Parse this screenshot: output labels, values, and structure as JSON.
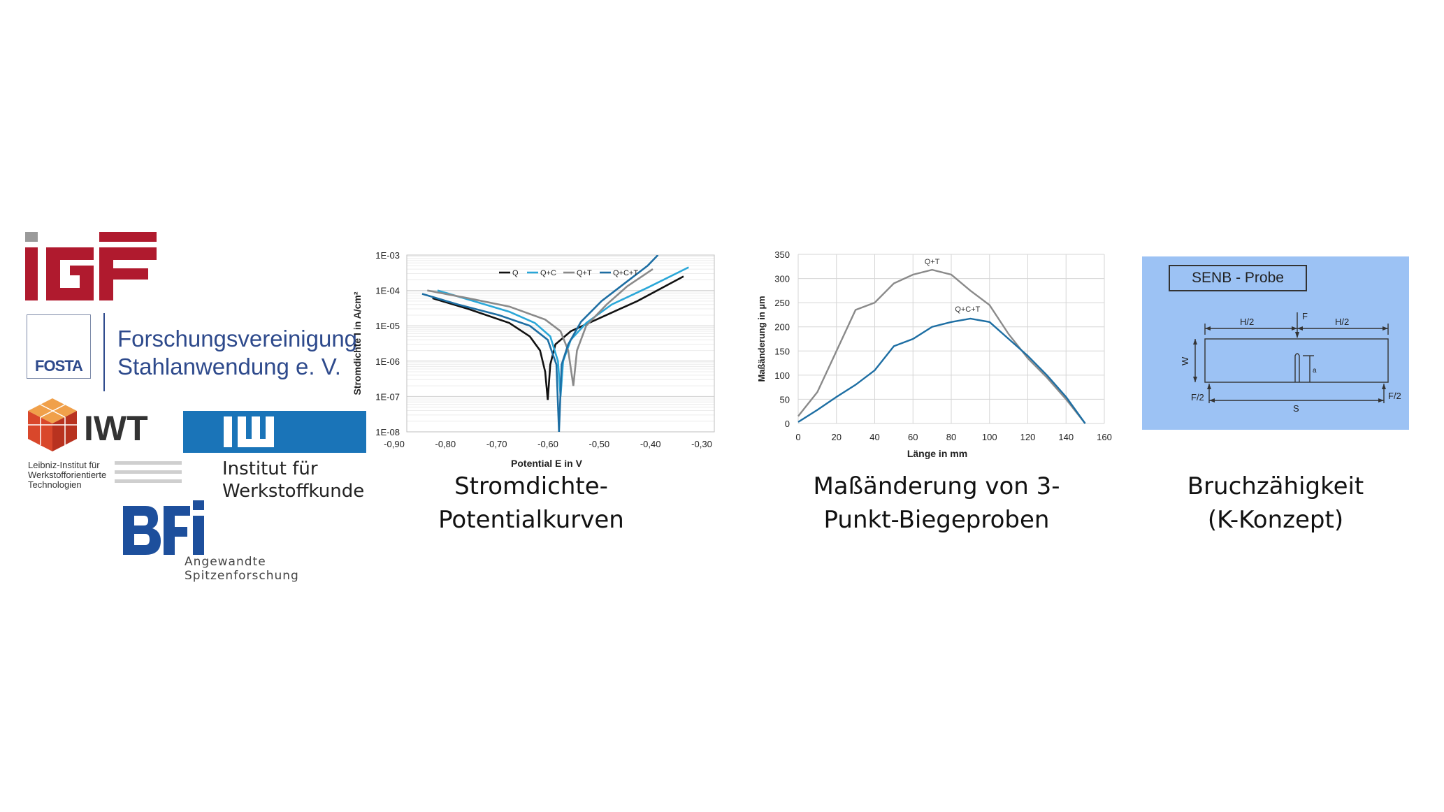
{
  "logos": {
    "igf": {
      "text": "iGF",
      "color": "#b01a2e",
      "accent": "#9a9a9a"
    },
    "fosta": {
      "abbr": "FOSTA",
      "line1": "Forschungsvereinigung",
      "line2": "Stahlanwendung e. V.",
      "color": "#2e4a8c"
    },
    "iwt": {
      "abbr": "IWT",
      "line1": "Leibniz-Institut für",
      "line2": "Werkstofforientierte",
      "line3": "Technologien",
      "color": "#d9472b"
    },
    "iw": {
      "line1": "Institut für",
      "line2": "Werkstoffkunde",
      "color": "#1a74b8"
    },
    "bfi": {
      "line1": "Angewandte",
      "line2": "Spitzenforschung",
      "color": "#1d4f9c"
    }
  },
  "captions": {
    "c1_line1": "Stromdichte-",
    "c1_line2": "Potentialkurven",
    "c2_line1": "Maßänderung von 3-",
    "c2_line2": "Punkt-Biegeproben",
    "c3_line1": "Bruchzähigkeit",
    "c3_line2": "(K-Konzept)"
  },
  "diagram": {
    "title": "SENB - Probe",
    "labels": {
      "h2_left": "H/2",
      "f": "F",
      "h2_right": "H/2",
      "w": "W",
      "a": "a",
      "f2_left": "F/2",
      "s": "S",
      "f2_right": "F/2"
    },
    "background": "#9cc2f4"
  },
  "chart_data": [
    {
      "type": "line",
      "title": "",
      "xlabel": "Potential E in V",
      "ylabel": "Stromdichte I in A/cm²",
      "xlim": [
        -0.9,
        -0.3
      ],
      "ylim": [
        1e-08,
        0.001
      ],
      "yscale": "log",
      "x_ticks": [
        "-0,90",
        "-0,80",
        "-0,70",
        "-0,60",
        "-0,50",
        "-0,40",
        "-0,30"
      ],
      "y_ticks": [
        "1E-03",
        "1E-04",
        "1E-05",
        "1E-06",
        "1E-07",
        "1E-08"
      ],
      "legend_position": "top",
      "series": [
        {
          "name": "Q",
          "color": "#111111",
          "points": [
            [
              -0.85,
              6e-05
            ],
            [
              -0.78,
              3e-05
            ],
            [
              -0.7,
              1.2e-05
            ],
            [
              -0.66,
              5e-06
            ],
            [
              -0.64,
              2e-06
            ],
            [
              -0.63,
              5e-07
            ],
            [
              -0.625,
              8e-08
            ],
            [
              -0.62,
              8e-07
            ],
            [
              -0.61,
              3e-06
            ],
            [
              -0.58,
              7e-06
            ],
            [
              -0.53,
              1.5e-05
            ],
            [
              -0.45,
              5e-05
            ],
            [
              -0.36,
              0.00025
            ]
          ]
        },
        {
          "name": "Q+C",
          "color": "#2aa7d8",
          "points": [
            [
              -0.84,
              0.0001
            ],
            [
              -0.77,
              5e-05
            ],
            [
              -0.7,
              2.5e-05
            ],
            [
              -0.65,
              1.2e-05
            ],
            [
              -0.62,
              5e-06
            ],
            [
              -0.605,
              1e-06
            ],
            [
              -0.6,
              1e-07
            ],
            [
              -0.595,
              1e-06
            ],
            [
              -0.58,
              4e-06
            ],
            [
              -0.55,
              1.2e-05
            ],
            [
              -0.5,
              4e-05
            ],
            [
              -0.43,
              0.00012
            ],
            [
              -0.35,
              0.00045
            ]
          ]
        },
        {
          "name": "Q+T",
          "color": "#8a8a8a",
          "points": [
            [
              -0.86,
              0.0001
            ],
            [
              -0.78,
              6e-05
            ],
            [
              -0.7,
              3.5e-05
            ],
            [
              -0.63,
              1.5e-05
            ],
            [
              -0.6,
              7e-06
            ],
            [
              -0.585,
              2e-06
            ],
            [
              -0.575,
              2e-07
            ],
            [
              -0.568,
              2e-06
            ],
            [
              -0.55,
              1e-05
            ],
            [
              -0.51,
              4e-05
            ],
            [
              -0.47,
              0.00013
            ],
            [
              -0.42,
              0.0004
            ]
          ]
        },
        {
          "name": "Q+C+T",
          "color": "#1d6ea3",
          "points": [
            [
              -0.87,
              8e-05
            ],
            [
              -0.8,
              4e-05
            ],
            [
              -0.72,
              2e-05
            ],
            [
              -0.66,
              1e-05
            ],
            [
              -0.625,
              4e-06
            ],
            [
              -0.608,
              8e-07
            ],
            [
              -0.603,
              1e-08
            ],
            [
              -0.598,
              8e-07
            ],
            [
              -0.585,
              3e-06
            ],
            [
              -0.56,
              1.3e-05
            ],
            [
              -0.52,
              5e-05
            ],
            [
              -0.47,
              0.00018
            ],
            [
              -0.43,
              0.0005
            ],
            [
              -0.41,
              0.001
            ]
          ]
        }
      ]
    },
    {
      "type": "line",
      "title": "",
      "xlabel": "Länge in mm",
      "ylabel": "Maßänderung in µm",
      "xlim": [
        0,
        160
      ],
      "ylim": [
        0,
        350
      ],
      "x_ticks": [
        0,
        20,
        40,
        60,
        80,
        100,
        120,
        140,
        160
      ],
      "y_ticks": [
        0,
        50,
        100,
        150,
        200,
        250,
        300,
        350
      ],
      "grid": true,
      "series": [
        {
          "name": "Q+T",
          "color": "#8a8a8a",
          "x": [
            0,
            10,
            20,
            30,
            40,
            50,
            60,
            70,
            80,
            90,
            100,
            110,
            120,
            130,
            140,
            150
          ],
          "values": [
            15,
            65,
            150,
            235,
            250,
            290,
            308,
            318,
            308,
            275,
            245,
            185,
            135,
            95,
            50,
            0
          ]
        },
        {
          "name": "Q+C+T",
          "color": "#1d6ea3",
          "x": [
            0,
            10,
            20,
            30,
            40,
            50,
            60,
            70,
            80,
            90,
            100,
            110,
            120,
            130,
            140,
            150
          ],
          "values": [
            3,
            28,
            55,
            80,
            110,
            160,
            175,
            200,
            210,
            217,
            210,
            175,
            140,
            100,
            55,
            0
          ]
        }
      ]
    }
  ]
}
